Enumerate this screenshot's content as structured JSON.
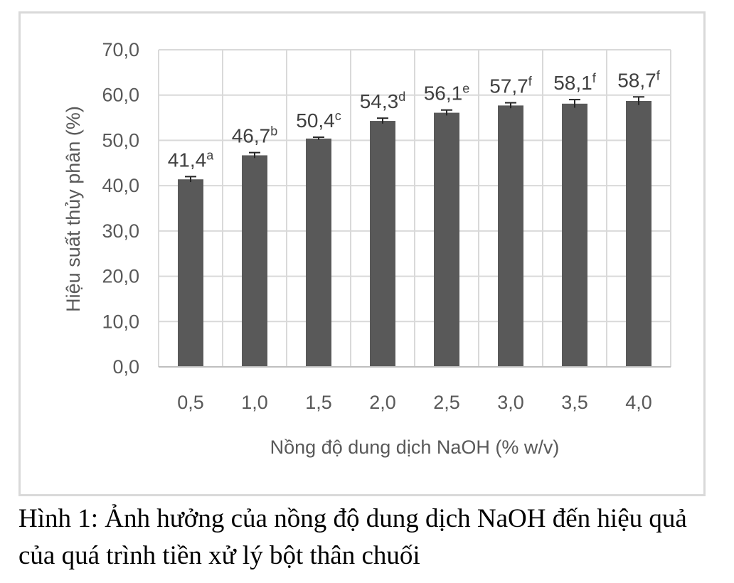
{
  "chart_data": {
    "type": "bar",
    "title": "",
    "xlabel": "Nồng độ dung dịch NaOH (% w/v)",
    "ylabel": "Hiệu suất thủy phân (%)",
    "categories": [
      "0,5",
      "1,0",
      "1,5",
      "2,0",
      "2,5",
      "3,0",
      "3,5",
      "4,0"
    ],
    "values": [
      41.4,
      46.7,
      50.4,
      54.3,
      56.1,
      57.7,
      58.1,
      58.7
    ],
    "errors": [
      0.6,
      0.6,
      0.3,
      0.6,
      0.6,
      0.6,
      0.9,
      0.9
    ],
    "data_labels": [
      {
        "value": "41,4",
        "sup": "a"
      },
      {
        "value": "46,7",
        "sup": "b"
      },
      {
        "value": "50,4",
        "sup": "c"
      },
      {
        "value": "54,3",
        "sup": "d"
      },
      {
        "value": "56,1",
        "sup": "e"
      },
      {
        "value": "57,7",
        "sup": "f"
      },
      {
        "value": "58,1",
        "sup": "f"
      },
      {
        "value": "58,7",
        "sup": "f"
      }
    ],
    "yticks": [
      "0,0",
      "10,0",
      "20,0",
      "30,0",
      "40,0",
      "50,0",
      "60,0",
      "70,0"
    ],
    "ylim": [
      0,
      70
    ],
    "grid": true,
    "bar_color": "#595959"
  },
  "caption": "Hình 1: Ảnh hưởng của nồng độ dung dịch NaOH đến hiệu quả của quá trình tiền xử lý bột thân chuối"
}
